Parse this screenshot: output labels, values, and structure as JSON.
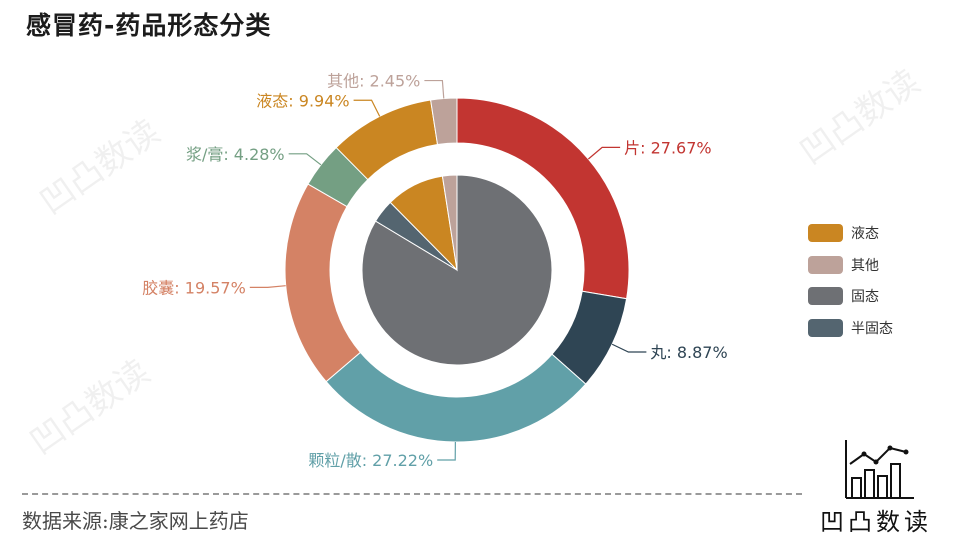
{
  "title": "感冒药-药品形态分类",
  "chart_data": {
    "type": "pie",
    "subtype": "nested-donut",
    "outer_ring": [
      {
        "name": "片",
        "value": 27.67,
        "label": "片: 27.67%",
        "color": "#c23531"
      },
      {
        "name": "丸",
        "value": 8.87,
        "label": "丸: 8.87%",
        "color": "#2f4554"
      },
      {
        "name": "颗粒/散",
        "value": 27.22,
        "label": "颗粒/散: 27.22%",
        "color": "#61a0a8"
      },
      {
        "name": "胶囊",
        "value": 19.57,
        "label": "胶囊: 19.57%",
        "color": "#d48265"
      },
      {
        "name": "浆/膏",
        "value": 4.28,
        "label": "浆/膏: 4.28%",
        "color": "#749f83"
      },
      {
        "name": "液态",
        "value": 9.94,
        "label": "液态: 9.94%",
        "color": "#ca8622"
      },
      {
        "name": "其他",
        "value": 2.45,
        "label": "其他: 2.45%",
        "color": "#bda29a"
      }
    ],
    "inner_pie": [
      {
        "name": "固态",
        "value": 83.6,
        "color": "#6e7074"
      },
      {
        "name": "半固态",
        "value": 4.0,
        "color": "#546570"
      },
      {
        "name": "液态",
        "value": 9.94,
        "color": "#ca8622"
      },
      {
        "name": "其他",
        "value": 2.45,
        "color": "#bda29a"
      }
    ],
    "legend": {
      "position": "right",
      "items": [
        {
          "name": "液态",
          "color": "#ca8622"
        },
        {
          "name": "其他",
          "color": "#bda29a"
        },
        {
          "name": "固态",
          "color": "#6e7074"
        },
        {
          "name": "半固态",
          "color": "#546570"
        }
      ]
    }
  },
  "source": "数据来源:康之家网上药店",
  "brand": {
    "name": "凹凸数读"
  },
  "watermark": "凹凸数读"
}
